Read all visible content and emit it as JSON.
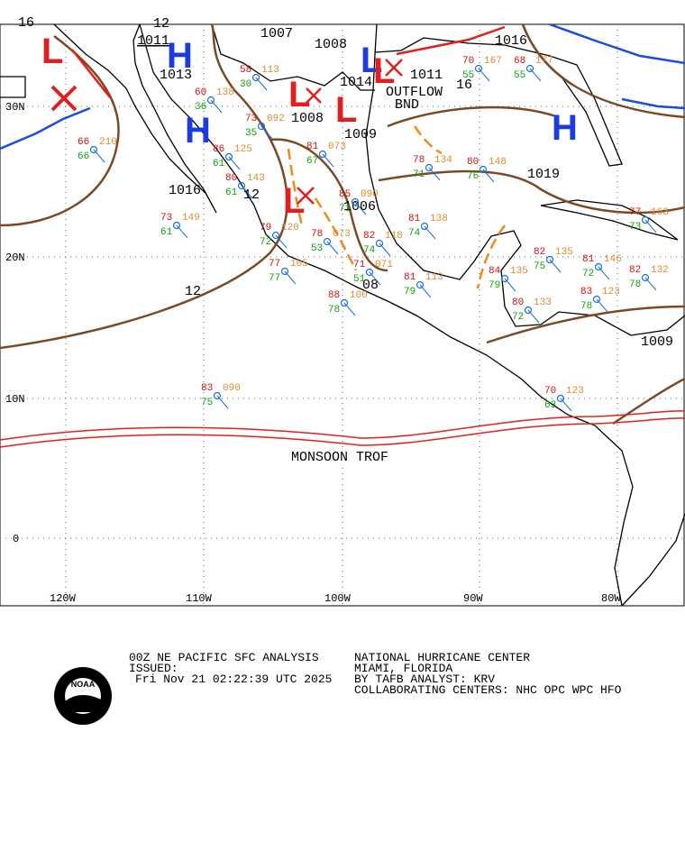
{
  "map": {
    "lat_labels": [
      "30N",
      "20N",
      "10N",
      "0"
    ],
    "lon_labels": [
      "120W",
      "110W",
      "100W",
      "90W",
      "80W"
    ],
    "isobar_labels": [
      "16",
      "12",
      "1011",
      "1007",
      "1008",
      "1016",
      "1013",
      "1014",
      "1011",
      "16",
      "1008",
      "1009",
      "1019",
      "1016",
      "12",
      "1006",
      "12",
      "08",
      "1009"
    ],
    "pressure_centers": [
      "L",
      "H",
      "H",
      "L",
      "L",
      "L",
      "L",
      "L",
      "H"
    ],
    "annotations": [
      "OUTFLOW",
      "BND",
      "MONSOON TROF"
    ],
    "stations": [
      {
        "temp": "66",
        "pressure": "210",
        "dew": "66"
      },
      {
        "temp": "73",
        "pressure": "149",
        "dew": "61"
      },
      {
        "temp": "60",
        "pressure": "138",
        "dew": "36"
      },
      {
        "temp": "58",
        "pressure": "113",
        "dew": "30"
      },
      {
        "temp": "73",
        "pressure": "092",
        "dew": "35"
      },
      {
        "temp": "86",
        "pressure": "125",
        "dew": "61"
      },
      {
        "temp": "80",
        "pressure": "143",
        "dew": "61"
      },
      {
        "temp": "81",
        "pressure": "073",
        "dew": "67"
      },
      {
        "temp": "79",
        "pressure": "120",
        "dew": "72"
      },
      {
        "temp": "77",
        "pressure": "105",
        "dew": "77"
      },
      {
        "temp": "78",
        "pressure": "073",
        "dew": "53"
      },
      {
        "temp": "85",
        "pressure": "090",
        "dew": "71"
      },
      {
        "temp": "82",
        "pressure": "118",
        "dew": "74"
      },
      {
        "temp": "71",
        "pressure": "071",
        "dew": "51"
      },
      {
        "temp": "88",
        "pressure": "100",
        "dew": "78"
      },
      {
        "temp": "81",
        "pressure": "138",
        "dew": "74"
      },
      {
        "temp": "78",
        "pressure": "134",
        "dew": "71"
      },
      {
        "temp": "80",
        "pressure": "148",
        "dew": "76"
      },
      {
        "temp": "81",
        "pressure": "113",
        "dew": "79"
      },
      {
        "temp": "82",
        "pressure": "135",
        "dew": "75"
      },
      {
        "temp": "84",
        "pressure": "135",
        "dew": "79"
      },
      {
        "temp": "80",
        "pressure": "133",
        "dew": "72"
      },
      {
        "temp": "81",
        "pressure": "146",
        "dew": "72"
      },
      {
        "temp": "83",
        "pressure": "123",
        "dew": "78"
      },
      {
        "temp": "82",
        "pressure": "132",
        "dew": "78"
      },
      {
        "temp": "77",
        "pressure": "163",
        "dew": "73"
      },
      {
        "temp": "83",
        "pressure": "090",
        "dew": "75"
      },
      {
        "temp": "70",
        "pressure": "123",
        "dew": "63"
      },
      {
        "temp": "68",
        "pressure": "177",
        "dew": "55"
      },
      {
        "temp": "70",
        "pressure": "167",
        "dew": "55"
      }
    ]
  },
  "footer": {
    "logo": "NOAA",
    "product": "00Z NE PACIFIC SFC ANALYSIS",
    "issued_label": "ISSUED:",
    "issued_time": "Fri Nov 21 02:22:39 UTC 2025",
    "center": "NATIONAL HURRICANE CENTER",
    "location": "MIAMI, FLORIDA",
    "analyst": "BY TAFB ANALYST: KRV",
    "collaborating": "COLLABORATING CENTERS: NHC OPC WPC HFO"
  }
}
